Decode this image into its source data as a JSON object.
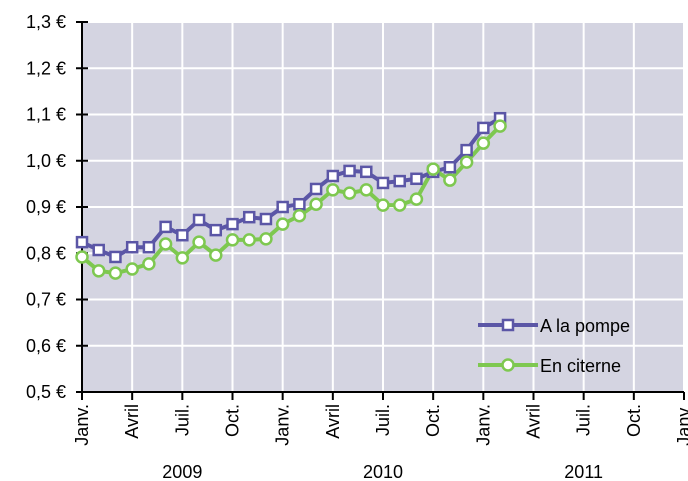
{
  "chart_data": {
    "type": "line",
    "x": [
      "2009-01",
      "2009-02",
      "2009-03",
      "2009-04",
      "2009-05",
      "2009-06",
      "2009-07",
      "2009-08",
      "2009-09",
      "2009-10",
      "2009-11",
      "2009-12",
      "2010-01",
      "2010-02",
      "2010-03",
      "2010-04",
      "2010-05",
      "2010-06",
      "2010-07",
      "2010-08",
      "2010-09",
      "2010-10",
      "2010-11",
      "2010-12",
      "2011-01",
      "2011-02"
    ],
    "series": [
      {
        "name": "A la pompe",
        "color": "#5b56a6",
        "marker": "square",
        "values": [
          0.824,
          0.807,
          0.792,
          0.813,
          0.813,
          0.857,
          0.839,
          0.872,
          0.85,
          0.863,
          0.878,
          0.874,
          0.9,
          0.906,
          0.939,
          0.967,
          0.978,
          0.976,
          0.952,
          0.956,
          0.961,
          0.976,
          0.986,
          1.023,
          1.071,
          1.092
        ]
      },
      {
        "name": "En citerne",
        "color": "#7ec850",
        "marker": "circle",
        "values": [
          0.792,
          0.762,
          0.757,
          0.766,
          0.777,
          0.82,
          0.79,
          0.824,
          0.796,
          0.829,
          0.829,
          0.831,
          0.863,
          0.881,
          0.906,
          0.937,
          0.93,
          0.937,
          0.904,
          0.904,
          0.917,
          0.982,
          0.958,
          0.997,
          1.038,
          1.075
        ]
      }
    ],
    "xlim": [
      "2009-01",
      "2012-01"
    ],
    "xticks": [
      {
        "value": "2009-01",
        "label": "Janv."
      },
      {
        "value": "2009-04",
        "label": "Avril"
      },
      {
        "value": "2009-07",
        "label": "Juil."
      },
      {
        "value": "2009-10",
        "label": "Oct."
      },
      {
        "value": "2010-01",
        "label": "Janv."
      },
      {
        "value": "2010-04",
        "label": "Avril"
      },
      {
        "value": "2010-07",
        "label": "Juil."
      },
      {
        "value": "2010-10",
        "label": "Oct."
      },
      {
        "value": "2011-01",
        "label": "Janv."
      },
      {
        "value": "2011-04",
        "label": "Avril"
      },
      {
        "value": "2011-07",
        "label": "Juil."
      },
      {
        "value": "2011-10",
        "label": "Oct."
      },
      {
        "value": "2012-01",
        "label": "Janv."
      }
    ],
    "year_labels": [
      "2009",
      "2010",
      "2011"
    ],
    "ylim": [
      0.5,
      1.3
    ],
    "yticks": [
      {
        "value": 0.5,
        "label": "0,5 €"
      },
      {
        "value": 0.6,
        "label": "0,6 €"
      },
      {
        "value": 0.7,
        "label": "0,7 €"
      },
      {
        "value": 0.8,
        "label": "0,8 €"
      },
      {
        "value": 0.9,
        "label": "0,9 €"
      },
      {
        "value": 1.0,
        "label": "1,0 €"
      },
      {
        "value": 1.1,
        "label": "1,1 €"
      },
      {
        "value": 1.2,
        "label": "1,2 €"
      },
      {
        "value": 1.3,
        "label": "1,3 €"
      }
    ],
    "grid": true,
    "legend": "lower right",
    "background": "#d4d4e1"
  }
}
